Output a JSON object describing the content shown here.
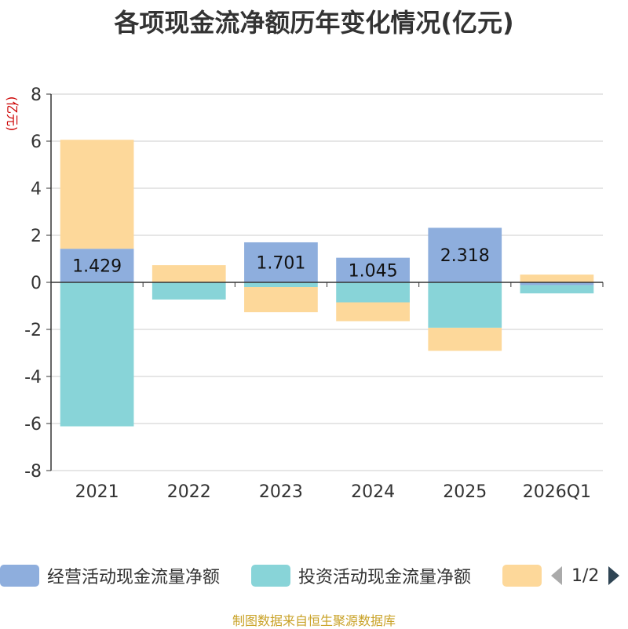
{
  "title": "各项现金流净额历年变化情况(亿元)",
  "source_note": "制图数据来自恒生聚源数据库",
  "legend": {
    "items": [
      {
        "label": "经营活动现金流量净额",
        "color": "#8eaedd"
      },
      {
        "label": "投资活动现金流量净额",
        "color": "#88d4d8"
      },
      {
        "label": "",
        "color": "#fdd89a"
      }
    ],
    "page": "1/2"
  },
  "chart_data": {
    "type": "bar",
    "stacked": true,
    "ylabel": "(亿元)",
    "ylim": [
      -8,
      8
    ],
    "yticks": [
      8,
      6,
      4,
      2,
      0,
      -2,
      -4,
      -6,
      -8
    ],
    "categories": [
      "2021",
      "2022",
      "2023",
      "2024",
      "2025",
      "2026Q1"
    ],
    "series": [
      {
        "name": "经营活动现金流量净额",
        "color": "#8eaedd",
        "values": [
          1.429,
          -0.009,
          1.701,
          1.045,
          2.318,
          -0.119
        ],
        "labels": [
          "1.429",
          "",
          "1.701",
          "1.045",
          "2.318",
          ""
        ]
      },
      {
        "name": "投资活动现金流量净额",
        "color": "#88d4d8",
        "values": [
          -6.12,
          -0.72,
          -0.2,
          -0.85,
          -1.93,
          -0.35
        ],
        "labels": [
          "",
          "",
          "",
          "",
          "",
          ""
        ]
      },
      {
        "color": "#fdd89a",
        "values": [
          4.63,
          0.73,
          -1.07,
          -0.8,
          -0.98,
          0.33
        ],
        "labels": [
          "",
          "",
          "",
          "",
          "",
          ""
        ]
      }
    ],
    "grid": true,
    "legend_position": "bottom"
  }
}
